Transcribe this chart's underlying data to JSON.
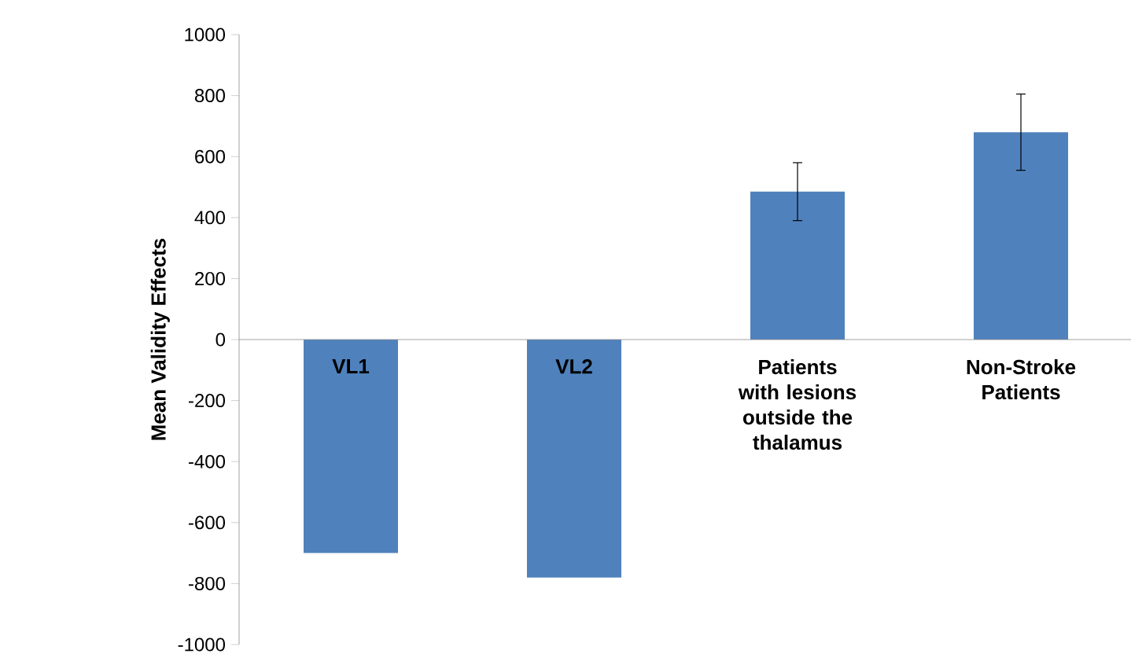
{
  "chart_data": {
    "type": "bar",
    "ylabel": "Mean Validity Effects",
    "categories": [
      "VL1",
      "VL2",
      "Patients with lesions outside the thalamus",
      "Non-Stroke Patients"
    ],
    "values": [
      -700,
      -780,
      485,
      680
    ],
    "errors": [
      null,
      null,
      95,
      125
    ],
    "color": "#4f81bd",
    "ylim": [
      -1000,
      1000
    ],
    "yticks": [
      -1000,
      -800,
      -600,
      -400,
      -200,
      0,
      200,
      400,
      600,
      800,
      1000
    ],
    "grid": false
  }
}
